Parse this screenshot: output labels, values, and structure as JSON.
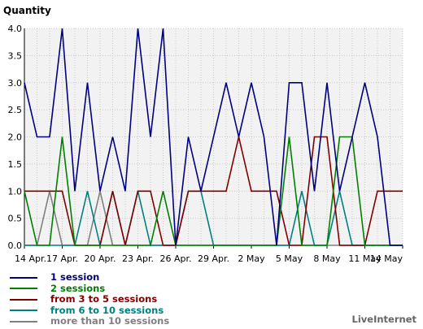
{
  "chart_data": {
    "type": "line",
    "ylabel": "Quantity",
    "ylim": [
      0,
      4
    ],
    "yticks": [
      "0.0",
      "0.5",
      "1.0",
      "1.5",
      "2.0",
      "2.5",
      "3.0",
      "3.5",
      "4.0"
    ],
    "categories": [
      "14 Apr.",
      "15 Apr.",
      "16 Apr.",
      "17 Apr.",
      "18 Apr.",
      "19 Apr.",
      "20 Apr.",
      "21 Apr.",
      "22 Apr.",
      "23 Apr.",
      "24 Apr.",
      "25 Apr.",
      "26 Apr.",
      "27 Apr.",
      "28 Apr.",
      "29 Apr.",
      "30 Apr.",
      "1 May",
      "2 May",
      "3 May",
      "4 May",
      "5 May",
      "6 May",
      "7 May",
      "8 May",
      "9 May",
      "10 May",
      "11 May",
      "12 May",
      "13 May",
      "14 May"
    ],
    "xtick_labels": [
      "14 Apr.",
      "17 Apr.",
      "20 Apr.",
      "23 Apr.",
      "26 Apr.",
      "29 Apr.",
      "2 May",
      "5 May",
      "8 May",
      "11 May",
      "14 May"
    ],
    "grid": true,
    "legend_position": "bottom-left",
    "series": [
      {
        "name": "1 session",
        "color": "#000080",
        "values": [
          3,
          2,
          2,
          4,
          1,
          3,
          1,
          2,
          1,
          4,
          2,
          4,
          0,
          2,
          1,
          2,
          3,
          2,
          3,
          2,
          0,
          3,
          3,
          1,
          3,
          1,
          2,
          3,
          2,
          0,
          0
        ]
      },
      {
        "name": "2 sessions",
        "color": "#008000",
        "values": [
          1,
          0,
          0,
          2,
          0,
          0,
          0,
          0,
          0,
          0,
          0,
          1,
          0,
          0,
          0,
          0,
          0,
          0,
          0,
          0,
          0,
          2,
          0,
          0,
          0,
          2,
          2,
          0,
          0,
          0,
          0
        ]
      },
      {
        "name": "from 3 to 5 sessions",
        "color": "#800000",
        "values": [
          1,
          1,
          1,
          1,
          0,
          0,
          0,
          1,
          0,
          1,
          1,
          0,
          0,
          1,
          1,
          1,
          1,
          2,
          1,
          1,
          1,
          0,
          0,
          2,
          2,
          0,
          0,
          0,
          1,
          1,
          1
        ]
      },
      {
        "name": "from 6 to 10 sessions",
        "color": "#008080",
        "values": [
          0,
          0,
          0,
          0,
          0,
          1,
          0,
          1,
          0,
          1,
          0,
          0,
          0,
          1,
          1,
          0,
          0,
          0,
          0,
          0,
          0,
          0,
          1,
          0,
          0,
          1,
          0,
          0,
          0,
          0,
          0
        ]
      },
      {
        "name": "more than 10 sessions",
        "color": "#808080",
        "values": [
          0,
          0,
          1,
          0,
          0,
          0,
          1,
          0,
          0,
          0,
          0,
          0,
          0,
          0,
          0,
          0,
          0,
          0,
          0,
          0,
          0,
          0,
          0,
          0,
          0,
          0,
          0,
          0,
          0,
          0,
          0
        ]
      }
    ]
  },
  "brand": "LiveInternet"
}
